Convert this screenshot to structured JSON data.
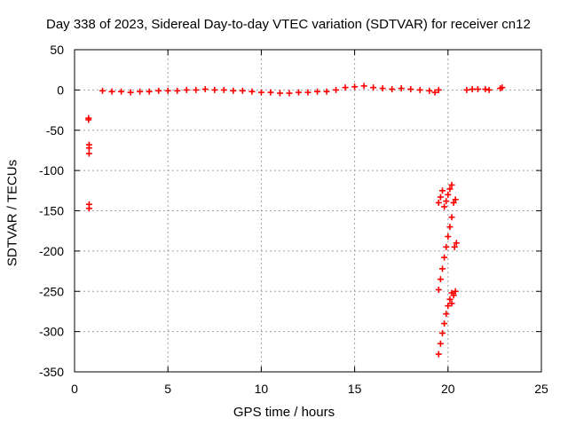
{
  "chart_data": {
    "type": "scatter",
    "title": "Day 338 of 2023, Sidereal Day-to-day VTEC variation (SDTVAR) for receiver cn12",
    "xlabel": "GPS time / hours",
    "ylabel": "SDTVAR / TECUs",
    "xlim": [
      0,
      25
    ],
    "ylim": [
      -350,
      50
    ],
    "xticks": [
      "0",
      "5",
      "10",
      "15",
      "20",
      "25"
    ],
    "yticks": [
      "50",
      "0",
      "-50",
      "-100",
      "-150",
      "-200",
      "-250",
      "-300",
      "-350"
    ],
    "grid": true,
    "marker": "+",
    "color": "#ff0000",
    "series": [
      {
        "points": [
          [
            0.75,
            -35
          ],
          [
            0.75,
            -37
          ],
          [
            0.78,
            -68
          ],
          [
            0.78,
            -72
          ],
          [
            0.78,
            -79
          ],
          [
            0.78,
            -142
          ],
          [
            0.78,
            -147
          ],
          [
            1.5,
            -1
          ],
          [
            2.0,
            -2
          ],
          [
            2.5,
            -2
          ],
          [
            3.0,
            -3
          ],
          [
            3.5,
            -2
          ],
          [
            4.0,
            -2
          ],
          [
            4.5,
            -1
          ],
          [
            5.0,
            -1
          ],
          [
            5.5,
            -1
          ],
          [
            6.0,
            0
          ],
          [
            6.5,
            0
          ],
          [
            7.0,
            1
          ],
          [
            7.5,
            0
          ],
          [
            8.0,
            0
          ],
          [
            8.5,
            -1
          ],
          [
            9.0,
            -1
          ],
          [
            9.5,
            -2
          ],
          [
            10.0,
            -3
          ],
          [
            10.5,
            -3
          ],
          [
            11.0,
            -4
          ],
          [
            11.5,
            -4
          ],
          [
            12.0,
            -3
          ],
          [
            12.5,
            -3
          ],
          [
            13.0,
            -2
          ],
          [
            13.5,
            -2
          ],
          [
            14.0,
            0
          ],
          [
            14.5,
            3
          ],
          [
            15.0,
            4
          ],
          [
            15.5,
            5
          ],
          [
            16.0,
            3
          ],
          [
            16.5,
            2
          ],
          [
            17.0,
            1
          ],
          [
            17.5,
            2
          ],
          [
            18.0,
            1
          ],
          [
            18.5,
            0
          ],
          [
            19.0,
            -1
          ],
          [
            19.3,
            -3
          ],
          [
            19.5,
            0
          ],
          [
            21.0,
            0
          ],
          [
            21.3,
            1
          ],
          [
            21.6,
            1
          ],
          [
            22.0,
            1
          ],
          [
            22.2,
            0
          ],
          [
            22.8,
            2
          ],
          [
            22.9,
            3
          ],
          [
            19.5,
            -140
          ],
          [
            19.6,
            -133
          ],
          [
            19.7,
            -125
          ],
          [
            19.8,
            -145
          ],
          [
            19.9,
            -138
          ],
          [
            20.0,
            -130
          ],
          [
            20.1,
            -123
          ],
          [
            20.2,
            -118
          ],
          [
            19.5,
            -248
          ],
          [
            19.6,
            -235
          ],
          [
            19.7,
            -222
          ],
          [
            19.8,
            -208
          ],
          [
            19.9,
            -195
          ],
          [
            20.0,
            -182
          ],
          [
            20.1,
            -170
          ],
          [
            20.2,
            -158
          ],
          [
            20.3,
            -140
          ],
          [
            20.4,
            -136
          ],
          [
            20.35,
            -195
          ],
          [
            20.45,
            -190
          ],
          [
            19.5,
            -328
          ],
          [
            19.6,
            -315
          ],
          [
            19.7,
            -302
          ],
          [
            19.8,
            -290
          ],
          [
            19.9,
            -278
          ],
          [
            20.0,
            -268
          ],
          [
            20.1,
            -260
          ],
          [
            20.2,
            -252
          ],
          [
            20.3,
            -255
          ],
          [
            20.4,
            -250
          ],
          [
            20.2,
            -265
          ]
        ]
      }
    ]
  }
}
